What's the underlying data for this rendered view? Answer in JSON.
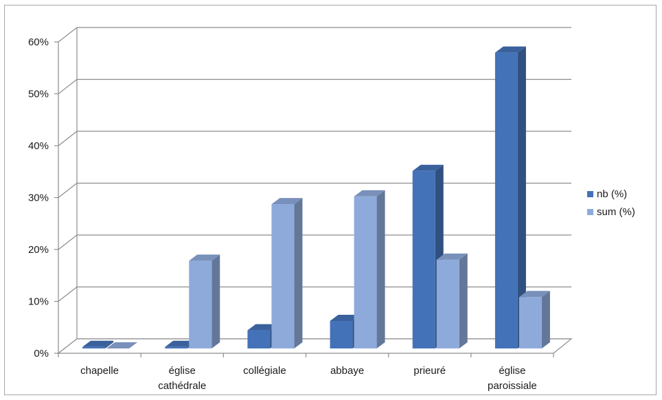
{
  "chart_data": {
    "type": "bar",
    "style": "3d-clustered-column",
    "title": "",
    "xlabel": "",
    "ylabel": "",
    "ylim": [
      0,
      60
    ],
    "y_unit": "%",
    "y_ticks": [
      "0%",
      "10%",
      "20%",
      "30%",
      "40%",
      "50%",
      "60%"
    ],
    "categories": [
      [
        "chapelle"
      ],
      [
        "église",
        "cathédrale"
      ],
      [
        "collégiale"
      ],
      [
        "abbaye"
      ],
      [
        "prieuré"
      ],
      [
        "église",
        "paroissiale"
      ]
    ],
    "series": [
      {
        "name": "nb (%)",
        "color": "#4472b8",
        "values": [
          0.3,
          0.3,
          3.5,
          5.3,
          34.2,
          57.0
        ]
      },
      {
        "name": "sum (%)",
        "color": "#8eaadb",
        "values": [
          0.0,
          16.9,
          27.8,
          29.3,
          17.1,
          9.9
        ]
      }
    ],
    "grid": true,
    "legend_position": "right"
  }
}
